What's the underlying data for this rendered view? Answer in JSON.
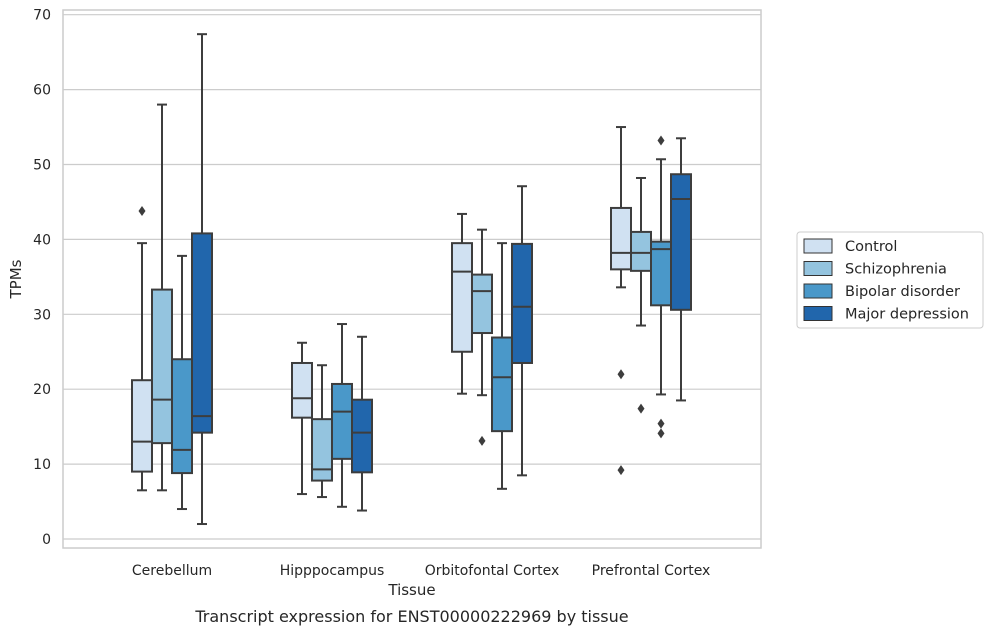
{
  "chart_data": {
    "type": "box",
    "xlabel": "Tissue",
    "ylabel": "TPMs",
    "caption": "Transcript expression for ENST00000222969 by tissue",
    "ylim": [
      -1,
      71
    ],
    "yticks": [
      "0",
      "10",
      "20",
      "30",
      "40",
      "50",
      "60",
      "70"
    ],
    "grid": "horizontal",
    "legend_position": "right",
    "categories": [
      "Cerebellum",
      "Hipppocampus",
      "Orbitofontal Cortex",
      "Prefrontal Cortex"
    ],
    "series": [
      {
        "name": "Control",
        "color": "#d0e1f2",
        "boxes": [
          {
            "whisker_low": 6.5,
            "q1": 9.0,
            "median": 13.0,
            "q3": 21.2,
            "whisker_high": 39.5,
            "outliers": [
              43.8
            ]
          },
          {
            "whisker_low": 6.0,
            "q1": 16.2,
            "median": 18.8,
            "q3": 23.5,
            "whisker_high": 26.2,
            "outliers": []
          },
          {
            "whisker_low": 19.4,
            "q1": 25.0,
            "median": 35.7,
            "q3": 39.5,
            "whisker_high": 43.4,
            "outliers": []
          },
          {
            "whisker_low": 33.6,
            "q1": 36.0,
            "median": 38.2,
            "q3": 44.2,
            "whisker_high": 55.0,
            "outliers": [
              22.0,
              9.2
            ]
          }
        ]
      },
      {
        "name": "Schizophrenia",
        "color": "#94c4df",
        "boxes": [
          {
            "whisker_low": 6.5,
            "q1": 12.8,
            "median": 18.6,
            "q3": 33.3,
            "whisker_high": 58.0,
            "outliers": []
          },
          {
            "whisker_low": 5.6,
            "q1": 7.8,
            "median": 9.3,
            "q3": 16.0,
            "whisker_high": 23.2,
            "outliers": []
          },
          {
            "whisker_low": 19.2,
            "q1": 27.5,
            "median": 33.1,
            "q3": 35.3,
            "whisker_high": 41.3,
            "outliers": [
              13.1
            ]
          },
          {
            "whisker_low": 28.5,
            "q1": 35.8,
            "median": 38.2,
            "q3": 41.0,
            "whisker_high": 48.2,
            "outliers": [
              17.4
            ]
          }
        ]
      },
      {
        "name": "Bipolar disorder",
        "color": "#4a98c9",
        "boxes": [
          {
            "whisker_low": 4.0,
            "q1": 8.8,
            "median": 11.9,
            "q3": 24.0,
            "whisker_high": 37.8,
            "outliers": []
          },
          {
            "whisker_low": 4.3,
            "q1": 10.7,
            "median": 17.0,
            "q3": 20.7,
            "whisker_high": 28.7,
            "outliers": []
          },
          {
            "whisker_low": 6.7,
            "q1": 14.4,
            "median": 21.6,
            "q3": 26.9,
            "whisker_high": 39.5,
            "outliers": []
          },
          {
            "whisker_low": 19.3,
            "q1": 31.2,
            "median": 38.7,
            "q3": 39.7,
            "whisker_high": 50.7,
            "outliers": [
              53.2,
              15.4,
              14.1
            ]
          }
        ]
      },
      {
        "name": "Major depression",
        "color": "#2166ac",
        "boxes": [
          {
            "whisker_low": 2.0,
            "q1": 14.2,
            "median": 16.4,
            "q3": 40.8,
            "whisker_high": 67.4,
            "outliers": []
          },
          {
            "whisker_low": 3.8,
            "q1": 8.9,
            "median": 14.2,
            "q3": 18.6,
            "whisker_high": 27.0,
            "outliers": []
          },
          {
            "whisker_low": 8.5,
            "q1": 23.5,
            "median": 31.0,
            "q3": 39.4,
            "whisker_high": 47.1,
            "outliers": []
          },
          {
            "whisker_low": 18.5,
            "q1": 30.6,
            "median": 45.4,
            "q3": 48.7,
            "whisker_high": 53.5,
            "outliers": []
          }
        ]
      }
    ]
  }
}
